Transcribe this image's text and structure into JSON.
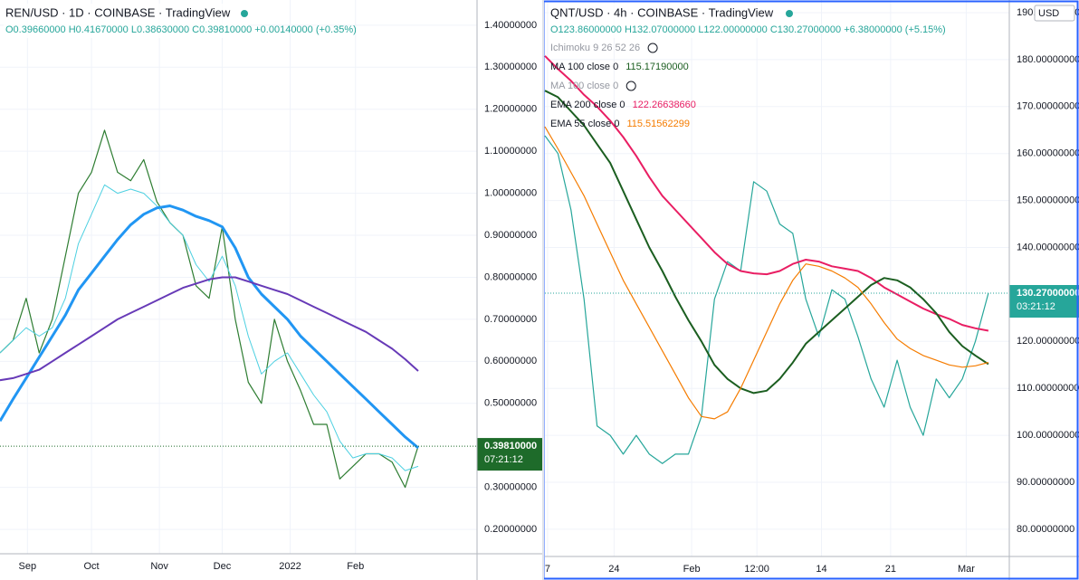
{
  "chart_data": [
    {
      "type": "line",
      "title": "REN/USD · 1D · COINBASE · TradingView",
      "ohlc": "O0.39660000 H0.41670000 L0.38630000 C0.39810000 +0.00140000 (+0.35%)",
      "xlim": [
        0,
        36.5
      ],
      "ylim": [
        0.142,
        1.46
      ],
      "xticks": [
        {
          "value": 2.1,
          "label": "Sep"
        },
        {
          "value": 7.0,
          "label": "Oct"
        },
        {
          "value": 12.2,
          "label": "Nov"
        },
        {
          "value": 17.0,
          "label": "Dec"
        },
        {
          "value": 22.2,
          "label": "2022"
        },
        {
          "value": 27.2,
          "label": "Feb"
        }
      ],
      "yticks": [
        {
          "value": 1.4,
          "label": "1.40000000"
        },
        {
          "value": 1.3,
          "label": "1.30000000"
        },
        {
          "value": 1.2,
          "label": "1.20000000"
        },
        {
          "value": 1.1,
          "label": "1.10000000"
        },
        {
          "value": 1.0,
          "label": "1.00000000"
        },
        {
          "value": 0.9,
          "label": "0.90000000"
        },
        {
          "value": 0.8,
          "label": "0.80000000"
        },
        {
          "value": 0.7,
          "label": "0.70000000"
        },
        {
          "value": 0.6,
          "label": "0.60000000"
        },
        {
          "value": 0.5,
          "label": "0.50000000"
        },
        {
          "value": 0.3,
          "label": "0.30000000"
        },
        {
          "value": 0.2,
          "label": "0.20000000"
        }
      ],
      "last_price": {
        "value": 0.3981,
        "label": "0.39810000"
      },
      "countdown": "07:21:12",
      "price_color": "#1e6b2a",
      "series": [
        {
          "color": "#2e7d32",
          "width": 1.2,
          "values": [
            0.62,
            0.65,
            0.75,
            0.62,
            0.7,
            0.85,
            1.0,
            1.05,
            1.15,
            1.05,
            1.03,
            1.08,
            0.98,
            0.93,
            0.9,
            0.78,
            0.75,
            0.92,
            0.7,
            0.55,
            0.5,
            0.7,
            0.6,
            0.53,
            0.45,
            0.45,
            0.32,
            0.35,
            0.38,
            0.38,
            0.36,
            0.3,
            0.3981
          ]
        },
        {
          "color": "#4dd0e1",
          "width": 1,
          "values": [
            0.62,
            0.65,
            0.68,
            0.66,
            0.68,
            0.75,
            0.88,
            0.95,
            1.02,
            1.0,
            1.01,
            1.0,
            0.97,
            0.93,
            0.9,
            0.83,
            0.79,
            0.85,
            0.78,
            0.66,
            0.57,
            0.6,
            0.62,
            0.57,
            0.52,
            0.48,
            0.41,
            0.37,
            0.38,
            0.38,
            0.37,
            0.34,
            0.35
          ]
        },
        {
          "color": "#2196f3",
          "width": 3,
          "values": [
            0.458,
            0.51,
            0.56,
            0.61,
            0.66,
            0.71,
            0.77,
            0.81,
            0.85,
            0.89,
            0.925,
            0.95,
            0.965,
            0.97,
            0.96,
            0.945,
            0.935,
            0.92,
            0.87,
            0.8,
            0.76,
            0.73,
            0.7,
            0.66,
            0.63,
            0.6,
            0.57,
            0.54,
            0.51,
            0.48,
            0.45,
            0.42,
            0.394
          ]
        },
        {
          "color": "#673ab7",
          "width": 2,
          "values": [
            0.555,
            0.56,
            0.57,
            0.58,
            0.6,
            0.62,
            0.64,
            0.66,
            0.68,
            0.7,
            0.715,
            0.73,
            0.745,
            0.76,
            0.775,
            0.785,
            0.795,
            0.8,
            0.8,
            0.79,
            0.78,
            0.77,
            0.76,
            0.745,
            0.73,
            0.715,
            0.7,
            0.685,
            0.67,
            0.65,
            0.63,
            0.605,
            0.577
          ]
        }
      ]
    },
    {
      "type": "line",
      "title": "QNT/USD · 4h · COINBASE · TradingView",
      "ohlc": "O123.86000000 H132.07000000 L122.00000000 C130.27000000 +6.38000000 (+5.15%)",
      "indicators": [
        {
          "label": "Ichimoku 9 26 52 26",
          "color": "#9598a1"
        },
        {
          "label": "MA 100 close 0",
          "value": "115.17190000",
          "color": "#1b5e20"
        },
        {
          "label": "MA 100 close 0",
          "color": "#9598a1"
        },
        {
          "label": "EMA 200 close 0",
          "value": "122.26638660",
          "color": "#e91e63"
        },
        {
          "label": "EMA 55 close 0",
          "value": "115.51562299",
          "color": "#f57c00"
        }
      ],
      "currency": "USD",
      "xlim": [
        0,
        35.6
      ],
      "ylim": [
        74.2,
        192.7
      ],
      "xticks": [
        {
          "value": 0.2,
          "label": "7"
        },
        {
          "value": 5.3,
          "label": "24"
        },
        {
          "value": 11.25,
          "label": "Feb"
        },
        {
          "value": 16.25,
          "label": "12:00"
        },
        {
          "value": 21.2,
          "label": "14"
        },
        {
          "value": 26.5,
          "label": "21"
        },
        {
          "value": 32.3,
          "label": "Mar"
        }
      ],
      "yticks": [
        {
          "value": 190,
          "label": "190.00000000"
        },
        {
          "value": 180,
          "label": "180.00000000"
        },
        {
          "value": 170,
          "label": "170.00000000"
        },
        {
          "value": 160,
          "label": "160.00000000"
        },
        {
          "value": 150,
          "label": "150.00000000"
        },
        {
          "value": 140,
          "label": "140.00000000"
        },
        {
          "value": 120,
          "label": "120.00000000"
        },
        {
          "value": 110,
          "label": "110.00000000"
        },
        {
          "value": 100,
          "label": "100.00000000"
        },
        {
          "value": 90,
          "label": "90.00000000"
        },
        {
          "value": 80,
          "label": "80.00000000"
        }
      ],
      "last_price": {
        "value": 130.27,
        "label": "130.27000000"
      },
      "countdown": "03:21:12",
      "price_color": "#26a69a",
      "series": [
        {
          "color": "#26a69a",
          "width": 1.2,
          "values": [
            163.8,
            160,
            148,
            129,
            102,
            100,
            96,
            100,
            96,
            94,
            96,
            96,
            104,
            129,
            137,
            135,
            154,
            152,
            145,
            143,
            129,
            121,
            131,
            129,
            121,
            112,
            106,
            116,
            106,
            100,
            112,
            108,
            112,
            120,
            130.27
          ]
        },
        {
          "color": "#e91e63",
          "width": 2,
          "values": [
            180.8,
            178,
            175.5,
            172.5,
            170,
            167,
            163.5,
            159.5,
            155,
            151,
            148,
            145,
            142,
            139,
            136.5,
            135,
            134.5,
            134.3,
            135,
            136.5,
            137.4,
            137,
            136,
            135.5,
            135,
            133.5,
            131.5,
            130,
            128.5,
            127,
            125.8,
            124.8,
            123.5,
            122.8,
            122.27
          ]
        },
        {
          "color": "#1b5e20",
          "width": 2,
          "values": [
            173.4,
            172,
            169,
            166,
            162,
            158,
            152,
            146,
            140,
            135,
            129.5,
            124.5,
            120,
            115,
            112,
            110,
            109,
            109.5,
            112,
            115.5,
            119.5,
            122,
            124.5,
            127,
            129.5,
            132,
            133.5,
            133,
            131.5,
            129,
            126,
            122,
            119,
            117,
            115.17
          ]
        },
        {
          "color": "#f57c00",
          "width": 1.2,
          "values": [
            165.7,
            161,
            156,
            151,
            145,
            139,
            133,
            128,
            123,
            118,
            113,
            108,
            104,
            103.5,
            105,
            110,
            116,
            122,
            128,
            133,
            136.5,
            136,
            135,
            133.5,
            131.5,
            128,
            124,
            120.5,
            118.5,
            117,
            116,
            115,
            114.5,
            114.8,
            115.52
          ]
        }
      ]
    }
  ]
}
